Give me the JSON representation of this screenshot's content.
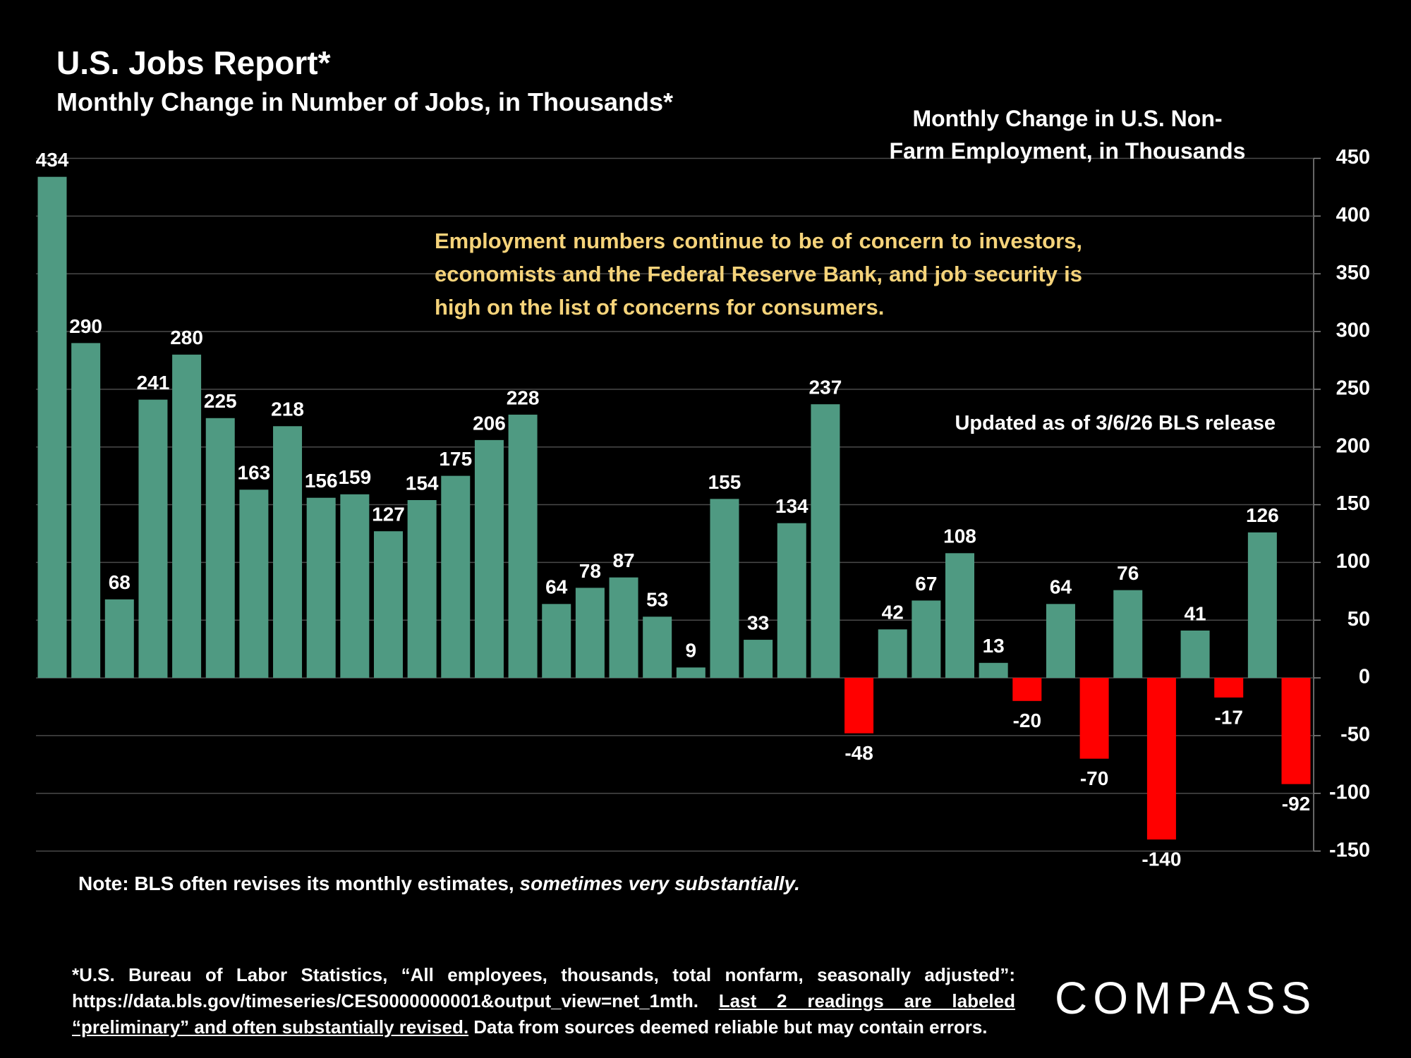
{
  "chart_data": {
    "type": "bar",
    "title": "U.S. Jobs Report*",
    "subtitle": "Monthly Change in Number of Jobs, in Thousands*",
    "y_axis_label": [
      "Monthly Change in U.S. Non-",
      "Farm Employment, in Thousands"
    ],
    "annotation": "Employment numbers continue to be of concern to investors, economists and the Federal Reserve Bank, and job security is high on the list of concerns for consumers.",
    "update_note": "Updated as of 3/6/26 BLS release",
    "values": [
      434,
      290,
      68,
      241,
      280,
      225,
      163,
      218,
      156,
      159,
      127,
      154,
      175,
      206,
      228,
      64,
      78,
      87,
      53,
      9,
      155,
      33,
      134,
      237,
      -48,
      42,
      67,
      108,
      13,
      -20,
      64,
      -70,
      76,
      -140,
      41,
      -17,
      126,
      -92
    ],
    "color": "#4f9a82",
    "negative_color": "#ff0000",
    "ylim": [
      -150,
      450
    ],
    "yticks": [
      -150,
      -100,
      -50,
      0,
      50,
      100,
      150,
      200,
      250,
      300,
      350,
      400,
      450
    ],
    "y_axis_side": "right",
    "grid": true
  },
  "note": {
    "text": "Note: BLS often revises its monthly estimates,",
    "emphasis": "sometimes very substantially."
  },
  "footnote": {
    "text": "*U.S. Bureau of Labor Statistics, “All employees, thousands, total nonfarm, seasonally adjusted”: https://data.bls.gov/timeseries/CES0000000001&output_view=net_1mth.",
    "underlined": "Last 2 readings are labeled “preliminary” and often substantially revised.",
    "tail": "Data from sources deemed reliable but may contain errors."
  },
  "logo": "COMPASS"
}
